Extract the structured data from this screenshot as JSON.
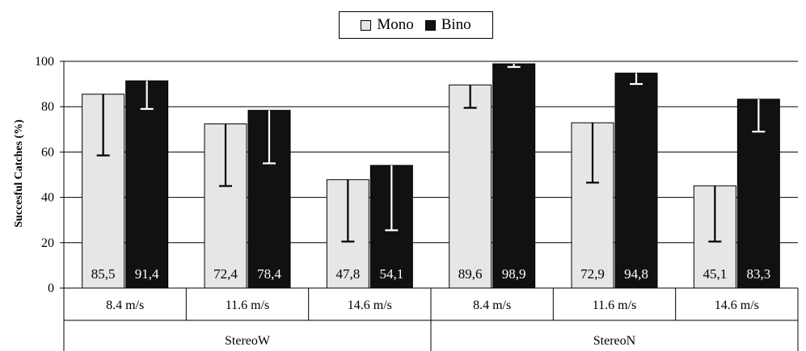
{
  "chart_data": {
    "type": "bar",
    "title": "",
    "xlabel": "",
    "ylabel": "Succesful Catches (%)",
    "ylim": [
      0,
      100
    ],
    "yticks": [
      0,
      20,
      40,
      60,
      80,
      100
    ],
    "grid": true,
    "legend_position": "top",
    "groups": [
      {
        "label": "StereoW",
        "categories": [
          "8.4 m/s",
          "11.6 m/s",
          "14.6 m/s"
        ]
      },
      {
        "label": "StereoN",
        "categories": [
          "8.4 m/s",
          "11.6 m/s",
          "14.6 m/s"
        ]
      }
    ],
    "categories": [
      "8.4 m/s",
      "11.6 m/s",
      "14.6 m/s",
      "8.4 m/s",
      "11.6 m/s",
      "14.6 m/s"
    ],
    "series": [
      {
        "name": "Mono",
        "color": "#e6e6e6",
        "values": [
          85.5,
          72.4,
          47.8,
          89.6,
          72.9,
          45.1
        ],
        "value_labels": [
          "85,5",
          "72,4",
          "47,8",
          "89,6",
          "72,9",
          "45,1"
        ],
        "error_lower": [
          58.5,
          45,
          20.5,
          79.5,
          46.5,
          20.5
        ]
      },
      {
        "name": "Bino",
        "color": "#111111",
        "values": [
          91.4,
          78.4,
          54.1,
          98.9,
          94.8,
          83.3
        ],
        "value_labels": [
          "91,4",
          "78,4",
          "54,1",
          "98,9",
          "94,8",
          "83,3"
        ],
        "error_lower": [
          79,
          55,
          25.5,
          97.5,
          90,
          69
        ]
      }
    ]
  }
}
